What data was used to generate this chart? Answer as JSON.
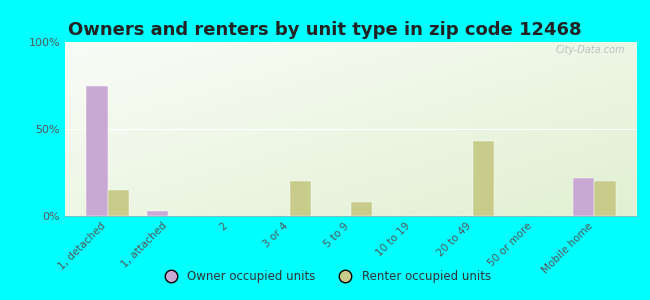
{
  "title": "Owners and renters by unit type in zip code 12468",
  "categories": [
    "1, detached",
    "1, attached",
    "2",
    "3 or 4",
    "5 to 9",
    "10 to 19",
    "20 to 49",
    "50 or more",
    "Mobile home"
  ],
  "owner_values": [
    75,
    3,
    0,
    0,
    0,
    0,
    0,
    0,
    22
  ],
  "renter_values": [
    15,
    0,
    0,
    20,
    8,
    0,
    43,
    0,
    20
  ],
  "owner_color": "#c9a8d4",
  "renter_color": "#c8cc8a",
  "background_color": "#00ffff",
  "plot_bg_color": "#e8f4d8",
  "ylim": [
    0,
    100
  ],
  "yticks": [
    0,
    50,
    100
  ],
  "ytick_labels": [
    "0%",
    "50%",
    "100%"
  ],
  "owner_label": "Owner occupied units",
  "renter_label": "Renter occupied units",
  "watermark": "City-Data.com",
  "title_fontsize": 13,
  "title_color": "#222222",
  "bar_width": 0.35
}
